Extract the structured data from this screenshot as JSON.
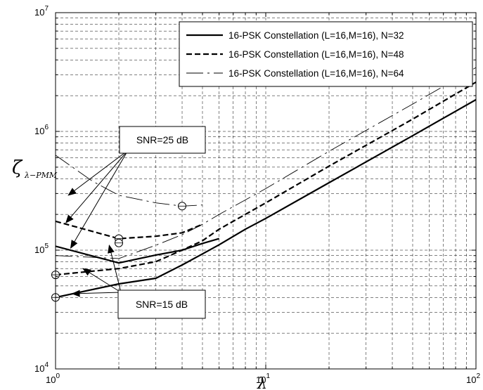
{
  "chart_data": {
    "type": "line",
    "xscale": "log",
    "yscale": "log",
    "xlim": [
      1,
      100
    ],
    "ylim": [
      10000,
      10000000
    ],
    "grid": true,
    "legend_position": "top-right",
    "xlabel": "λ",
    "ylabel": "ζ",
    "ylabel_sub": "λ−PMM",
    "x_ticks": [
      {
        "base": "10",
        "exp": "0",
        "value": 1
      },
      {
        "base": "10",
        "exp": "1",
        "value": 10
      },
      {
        "base": "10",
        "exp": "2",
        "value": 100
      }
    ],
    "y_ticks": [
      {
        "base": "10",
        "exp": "4",
        "value": 10000
      },
      {
        "base": "10",
        "exp": "5",
        "value": 100000
      },
      {
        "base": "10",
        "exp": "6",
        "value": 1000000
      },
      {
        "base": "10",
        "exp": "7",
        "value": 10000000
      }
    ],
    "series": [
      {
        "name": "16-PSK Constellation (L=16,M=16), N=32",
        "style": "solid-thick",
        "segments": [
          {
            "snr": "SNR=15 dB",
            "x": [
              1,
              2,
              3,
              4,
              5,
              6,
              8,
              10,
              20,
              50,
              100
            ],
            "y": [
              40000,
              52000,
              58000,
              75000,
              93000,
              111000,
              150000,
              185000,
              370000,
              920000,
              1850000
            ]
          },
          {
            "snr": "SNR=25 dB",
            "x": [
              1,
              2,
              3,
              4,
              5,
              6
            ],
            "y": [
              108000,
              78000,
              91000,
              100000,
              114000,
              125000
            ]
          }
        ]
      },
      {
        "name": "16-PSK Constellation (L=16,M=16), N=48",
        "style": "dashed-thick",
        "segments": [
          {
            "snr": "SNR=15 dB",
            "x": [
              1,
              2,
              3,
              4,
              5,
              6,
              8,
              10,
              20,
              50,
              100
            ],
            "y": [
              62000,
              70000,
              80000,
              100000,
              120000,
              150000,
              200000,
              250000,
              510000,
              1270000,
              2600000
            ]
          },
          {
            "snr": "SNR=25 dB",
            "x": [
              1,
              2,
              3,
              4,
              5
            ],
            "y": [
              175000,
              125000,
              131000,
              140000,
              165000
            ]
          }
        ]
      },
      {
        "name": "16-PSK Constellation (L=16,M=16), N=64",
        "style": "dashdot-thin",
        "segments": [
          {
            "snr": "SNR=15 dB",
            "x": [
              1,
              2,
              3,
              4,
              5,
              6,
              8,
              10,
              20,
              50,
              100
            ],
            "y": [
              90000,
              85000,
              110000,
              135000,
              165000,
              200000,
              265000,
              330000,
              680000,
              1700000,
              3450000
            ]
          },
          {
            "snr": "SNR=25 dB",
            "x": [
              1,
              1.5,
              2,
              3,
              4,
              5
            ],
            "y": [
              630000,
              380000,
              290000,
              250000,
              235000,
              240000
            ]
          }
        ]
      }
    ],
    "markers": [
      {
        "x": 1,
        "y": 40000
      },
      {
        "x": 1,
        "y": 62000
      },
      {
        "x": 2,
        "y": 125000
      },
      {
        "x": 2,
        "y": 115000
      },
      {
        "x": 4,
        "y": 235000
      }
    ],
    "annotations": [
      {
        "text": "SNR=25 dB",
        "box": "upper",
        "targets": [
          {
            "x": 1.15,
            "y": 290000
          },
          {
            "x": 1.12,
            "y": 170000
          },
          {
            "x": 1.18,
            "y": 104000
          }
        ]
      },
      {
        "text": "SNR=15 dB",
        "box": "lower",
        "targets": [
          {
            "x": 1.2,
            "y": 43000
          },
          {
            "x": 1.35,
            "y": 70000
          },
          {
            "x": 1.8,
            "y": 110000
          }
        ]
      }
    ]
  }
}
